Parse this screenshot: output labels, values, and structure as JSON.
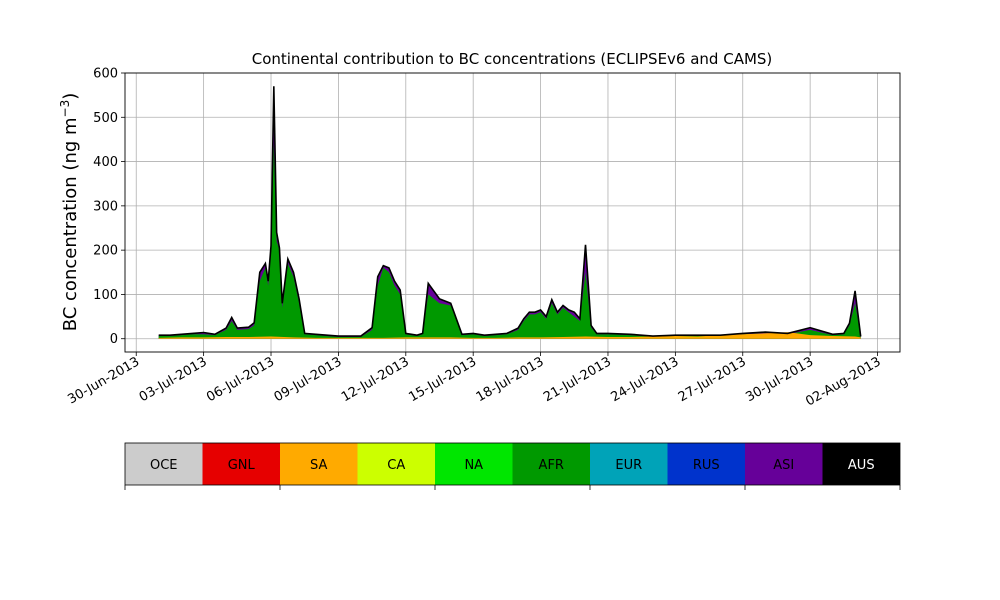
{
  "chart_data": {
    "type": "area",
    "title": "Continental contribution to BC concentrations (ECLIPSEv6 and CAMS)",
    "ylabel_prefix": "BC concentration (ng m",
    "ylabel_exp": "−3",
    "ylabel_suffix": ")",
    "xlabel": "",
    "xlim": [
      "2013-06-29T12:00",
      "2013-08-03T00:00"
    ],
    "ylim": [
      -30,
      600
    ],
    "yticks": [
      0,
      100,
      200,
      300,
      400,
      500,
      600
    ],
    "xticks": [
      {
        "date": "2013-06-30",
        "label": "30-Jun-2013"
      },
      {
        "date": "2013-07-03",
        "label": "03-Jul-2013"
      },
      {
        "date": "2013-07-06",
        "label": "06-Jul-2013"
      },
      {
        "date": "2013-07-09",
        "label": "09-Jul-2013"
      },
      {
        "date": "2013-07-12",
        "label": "12-Jul-2013"
      },
      {
        "date": "2013-07-15",
        "label": "15-Jul-2013"
      },
      {
        "date": "2013-07-18",
        "label": "18-Jul-2013"
      },
      {
        "date": "2013-07-21",
        "label": "21-Jul-2013"
      },
      {
        "date": "2013-07-24",
        "label": "24-Jul-2013"
      },
      {
        "date": "2013-07-27",
        "label": "27-Jul-2013"
      },
      {
        "date": "2013-07-30",
        "label": "30-Jul-2013"
      },
      {
        "date": "2013-08-02",
        "label": "02-Aug-2013"
      }
    ],
    "grid": true,
    "series_colors": {
      "SA": "#ffaa00",
      "AFR": "#009900",
      "ASI": "#660099",
      "RUS": "#0033cc",
      "AUS": "#000000"
    },
    "series": [
      {
        "name": "SA",
        "x": [
          "2013-07-01T00:00",
          "2013-07-02T00:00",
          "2013-07-03T00:00",
          "2013-07-04T00:00",
          "2013-07-05T00:00",
          "2013-07-06T00:00",
          "2013-07-07T00:00",
          "2013-07-08T00:00",
          "2013-07-09T00:00",
          "2013-07-10T00:00",
          "2013-07-11T00:00",
          "2013-07-12T00:00",
          "2013-07-13T00:00",
          "2013-07-14T00:00",
          "2013-07-15T00:00",
          "2013-07-16T00:00",
          "2013-07-17T00:00",
          "2013-07-18T00:00",
          "2013-07-19T00:00",
          "2013-07-20T00:00",
          "2013-07-21T00:00",
          "2013-07-22T00:00",
          "2013-07-23T00:00",
          "2013-07-24T00:00",
          "2013-07-25T00:00",
          "2013-07-26T00:00",
          "2013-07-27T00:00",
          "2013-07-28T00:00",
          "2013-07-29T00:00",
          "2013-07-30T00:00",
          "2013-07-31T00:00",
          "2013-08-01T00:00",
          "2013-08-01T06:00"
        ],
        "values": [
          2,
          3,
          3,
          4,
          4,
          5,
          3,
          2,
          2,
          2,
          2,
          3,
          3,
          3,
          2,
          2,
          3,
          3,
          4,
          5,
          4,
          4,
          5,
          6,
          5,
          8,
          10,
          12,
          15,
          8,
          6,
          5,
          3
        ]
      },
      {
        "name": "AFR",
        "x": [
          "2013-07-01T00:00",
          "2013-07-01T12:00",
          "2013-07-02T00:00",
          "2013-07-02T12:00",
          "2013-07-03T00:00",
          "2013-07-03T12:00",
          "2013-07-04T00:00",
          "2013-07-04T06:00",
          "2013-07-04T12:00",
          "2013-07-05T00:00",
          "2013-07-05T06:00",
          "2013-07-05T12:00",
          "2013-07-05T18:00",
          "2013-07-05T21:00",
          "2013-07-06T00:00",
          "2013-07-06T03:00",
          "2013-07-06T06:00",
          "2013-07-06T09:00",
          "2013-07-06T12:00",
          "2013-07-06T18:00",
          "2013-07-07T00:00",
          "2013-07-07T06:00",
          "2013-07-07T12:00",
          "2013-07-08T00:00",
          "2013-07-09T00:00",
          "2013-07-10T00:00",
          "2013-07-10T12:00",
          "2013-07-10T18:00",
          "2013-07-11T00:00",
          "2013-07-11T06:00",
          "2013-07-11T12:00",
          "2013-07-11T18:00",
          "2013-07-12T00:00",
          "2013-07-12T06:00",
          "2013-07-12T12:00",
          "2013-07-12T18:00",
          "2013-07-13T00:00",
          "2013-07-13T12:00",
          "2013-07-14T00:00",
          "2013-07-14T12:00",
          "2013-07-15T00:00",
          "2013-07-15T12:00",
          "2013-07-16T00:00",
          "2013-07-16T12:00",
          "2013-07-17T00:00",
          "2013-07-17T06:00",
          "2013-07-17T12:00",
          "2013-07-17T18:00",
          "2013-07-18T00:00",
          "2013-07-18T06:00",
          "2013-07-18T12:00",
          "2013-07-18T18:00",
          "2013-07-19T00:00",
          "2013-07-19T06:00",
          "2013-07-19T12:00",
          "2013-07-19T18:00",
          "2013-07-20T00:00",
          "2013-07-20T06:00",
          "2013-07-20T12:00",
          "2013-07-21T00:00",
          "2013-07-22T00:00",
          "2013-07-23T00:00",
          "2013-07-24T00:00",
          "2013-07-25T00:00",
          "2013-07-26T00:00",
          "2013-07-27T00:00",
          "2013-07-28T00:00",
          "2013-07-29T00:00",
          "2013-07-30T00:00",
          "2013-07-31T00:00",
          "2013-07-31T12:00",
          "2013-07-31T18:00",
          "2013-08-01T00:00",
          "2013-08-01T06:00"
        ],
        "values": [
          6,
          6,
          8,
          10,
          10,
          8,
          20,
          40,
          20,
          22,
          30,
          130,
          160,
          120,
          200,
          440,
          220,
          200,
          70,
          170,
          140,
          80,
          10,
          8,
          4,
          4,
          20,
          120,
          160,
          150,
          120,
          100,
          10,
          8,
          6,
          10,
          100,
          80,
          75,
          8,
          10,
          6,
          8,
          10,
          20,
          40,
          55,
          55,
          60,
          45,
          80,
          55,
          70,
          60,
          50,
          40,
          150,
          25,
          10,
          10,
          8,
          5,
          6,
          6,
          6,
          10,
          12,
          10,
          20,
          8,
          10,
          30,
          80,
          4
        ]
      }
    ],
    "total": {
      "name": "AUS",
      "x": [
        "2013-07-01T00:00",
        "2013-07-01T12:00",
        "2013-07-02T00:00",
        "2013-07-02T12:00",
        "2013-07-03T00:00",
        "2013-07-03T12:00",
        "2013-07-04T00:00",
        "2013-07-04T06:00",
        "2013-07-04T12:00",
        "2013-07-05T00:00",
        "2013-07-05T06:00",
        "2013-07-05T12:00",
        "2013-07-05T18:00",
        "2013-07-05T21:00",
        "2013-07-06T00:00",
        "2013-07-06T03:00",
        "2013-07-06T06:00",
        "2013-07-06T09:00",
        "2013-07-06T12:00",
        "2013-07-06T18:00",
        "2013-07-07T00:00",
        "2013-07-07T06:00",
        "2013-07-07T12:00",
        "2013-07-08T00:00",
        "2013-07-09T00:00",
        "2013-07-10T00:00",
        "2013-07-10T12:00",
        "2013-07-10T18:00",
        "2013-07-11T00:00",
        "2013-07-11T06:00",
        "2013-07-11T12:00",
        "2013-07-11T18:00",
        "2013-07-12T00:00",
        "2013-07-12T06:00",
        "2013-07-12T12:00",
        "2013-07-12T18:00",
        "2013-07-13T00:00",
        "2013-07-13T12:00",
        "2013-07-14T00:00",
        "2013-07-14T12:00",
        "2013-07-15T00:00",
        "2013-07-15T12:00",
        "2013-07-16T00:00",
        "2013-07-16T12:00",
        "2013-07-17T00:00",
        "2013-07-17T06:00",
        "2013-07-17T12:00",
        "2013-07-17T18:00",
        "2013-07-18T00:00",
        "2013-07-18T06:00",
        "2013-07-18T12:00",
        "2013-07-18T18:00",
        "2013-07-19T00:00",
        "2013-07-19T06:00",
        "2013-07-19T12:00",
        "2013-07-19T18:00",
        "2013-07-20T00:00",
        "2013-07-20T06:00",
        "2013-07-20T12:00",
        "2013-07-21T00:00",
        "2013-07-22T00:00",
        "2013-07-23T00:00",
        "2013-07-24T00:00",
        "2013-07-25T00:00",
        "2013-07-26T00:00",
        "2013-07-27T00:00",
        "2013-07-28T00:00",
        "2013-07-29T00:00",
        "2013-07-30T00:00",
        "2013-07-31T00:00",
        "2013-07-31T12:00",
        "2013-07-31T18:00",
        "2013-08-01T00:00",
        "2013-08-01T06:00"
      ],
      "values": [
        8,
        8,
        10,
        12,
        14,
        10,
        24,
        48,
        24,
        26,
        36,
        150,
        170,
        130,
        210,
        570,
        240,
        205,
        80,
        180,
        150,
        90,
        12,
        10,
        6,
        6,
        25,
        140,
        165,
        160,
        130,
        110,
        12,
        10,
        8,
        12,
        125,
        90,
        80,
        10,
        12,
        8,
        10,
        12,
        24,
        45,
        60,
        60,
        65,
        50,
        88,
        60,
        75,
        65,
        60,
        45,
        212,
        30,
        12,
        12,
        10,
        6,
        8,
        8,
        8,
        12,
        15,
        12,
        25,
        10,
        12,
        35,
        108,
        5
      ]
    }
  },
  "colorbar": {
    "regions": [
      {
        "label": "OCE",
        "color": "#cccccc",
        "text_color": "#000000"
      },
      {
        "label": "GNL",
        "color": "#e60000",
        "text_color": "#000000"
      },
      {
        "label": "SA",
        "color": "#ffaa00",
        "text_color": "#000000"
      },
      {
        "label": "CA",
        "color": "#ccff00",
        "text_color": "#000000"
      },
      {
        "label": "NA",
        "color": "#00e600",
        "text_color": "#000000"
      },
      {
        "label": "AFR",
        "color": "#009900",
        "text_color": "#000000"
      },
      {
        "label": "EUR",
        "color": "#00a3b8",
        "text_color": "#000000"
      },
      {
        "label": "RUS",
        "color": "#0033cc",
        "text_color": "#000000"
      },
      {
        "label": "ASI",
        "color": "#660099",
        "text_color": "#000000"
      },
      {
        "label": "AUS",
        "color": "#000000",
        "text_color": "#ffffff"
      }
    ]
  }
}
